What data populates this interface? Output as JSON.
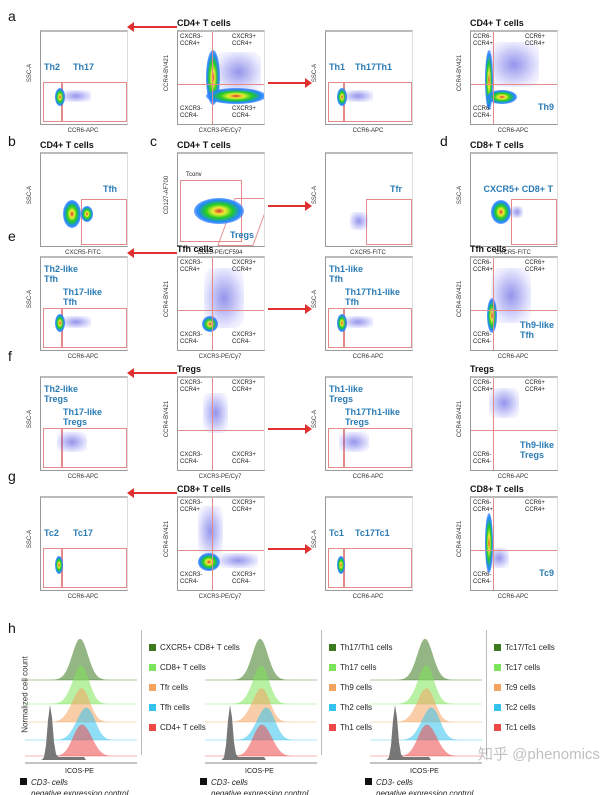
{
  "letters": [
    "a",
    "b",
    "c",
    "d",
    "e",
    "f",
    "g",
    "h"
  ],
  "panels": [
    {
      "id": "a1",
      "title": "",
      "xlabel": "CCR6-APC",
      "ylabel": "SSC-A",
      "gates": [
        "Th2",
        "Th17"
      ]
    },
    {
      "id": "a2",
      "title": "CD4+ T cells",
      "xlabel": "CXCR3-PE/Cy7",
      "ylabel": "CCR4-BV421",
      "quad": [
        "CXCR3-\nCCR4+",
        "CXCR3+\nCCR4+",
        "CXCR3-\nCCR4-",
        "CXCR3+\nCCR4-"
      ]
    },
    {
      "id": "a3",
      "title": "",
      "xlabel": "CCR6-APC",
      "ylabel": "SSC-A",
      "gates": [
        "Th1",
        "Th17Th1"
      ]
    },
    {
      "id": "a4",
      "title": "CD4+ T cells",
      "xlabel": "CCR6-APC",
      "ylabel": "CCR4-BV421",
      "quad": [
        "CCR6-\nCCR4+",
        "CCR6+\nCCR4+",
        "CCR6-\nCCR4-",
        ""
      ],
      "gates": [
        "Th9"
      ]
    },
    {
      "id": "b1",
      "title": "CD4+ T cells",
      "xlabel": "CXCR5-FITC",
      "ylabel": "SSC-A",
      "gates": [
        "Tfh"
      ]
    },
    {
      "id": "c1",
      "title": "CD4+ T cells",
      "xlabel": "CD25-PE/CF594",
      "ylabel": "CD127-AF700",
      "gates": [
        "Tconv",
        "Tregs"
      ]
    },
    {
      "id": "c2",
      "title": "",
      "xlabel": "CXCR5-FITC",
      "ylabel": "SSC-A",
      "gates": [
        "Tfr"
      ]
    },
    {
      "id": "d1",
      "title": "CD8+ T cells",
      "xlabel": "CXCR5-FITC",
      "ylabel": "SSC-A",
      "gates": [
        "CXCR5+ CD8+ T"
      ]
    },
    {
      "id": "e1",
      "title": "",
      "xlabel": "CCR6-APC",
      "ylabel": "SSC-A",
      "gates": [
        "Th2-like\nTfh",
        "Th17-like\nTfh"
      ]
    },
    {
      "id": "e2",
      "title": "Tfh cells",
      "xlabel": "CXCR3-PE/Cy7",
      "ylabel": "CCR4-BV421",
      "quad": [
        "CXCR3-\nCCR4+",
        "CXCR3+\nCCR4+",
        "CXCR3-\nCCR4-",
        "CXCR3+\nCCR4-"
      ]
    },
    {
      "id": "e3",
      "title": "",
      "xlabel": "CCR6-APC",
      "ylabel": "SSC-A",
      "gates": [
        "Th1-like\nTfh",
        "Th17Th1-like\nTfh"
      ]
    },
    {
      "id": "e4",
      "title": "Tfh cells",
      "xlabel": "CCR6-APC",
      "ylabel": "CCR4-BV421",
      "quad": [
        "CCR6-\nCCR4+",
        "CCR6+\nCCR4+",
        "CCR6-\nCCR4-",
        ""
      ],
      "gates": [
        "Th9-like\nTfh"
      ]
    },
    {
      "id": "f1",
      "title": "",
      "xlabel": "CCR6-APC",
      "ylabel": "SSC-A",
      "gates": [
        "Th2-like\nTregs",
        "Th17-like\nTregs"
      ]
    },
    {
      "id": "f2",
      "title": "Tregs",
      "xlabel": "CXCR3-PE/Cy7",
      "ylabel": "CCR4-BV421",
      "quad": [
        "CXCR3-\nCCR4+",
        "CXCR3+\nCCR4+",
        "CXCR3-\nCCR4-",
        "CXCR3+\nCCR4-"
      ]
    },
    {
      "id": "f3",
      "title": "",
      "xlabel": "CCR6-APC",
      "ylabel": "SSC-A",
      "gates": [
        "Th1-like\nTregs",
        "Th17Th1-like\nTregs"
      ]
    },
    {
      "id": "f4",
      "title": "Tregs",
      "xlabel": "CCR6-APC",
      "ylabel": "CCR4-BV421",
      "quad": [
        "CCR6-\nCCR4+",
        "CCR6+\nCCR4+",
        "CCR6-\nCCR4-",
        ""
      ],
      "gates": [
        "Th9-like\nTregs"
      ]
    },
    {
      "id": "g1",
      "title": "",
      "xlabel": "CCR6-APC",
      "ylabel": "SSC-A",
      "gates": [
        "Tc2",
        "Tc17"
      ]
    },
    {
      "id": "g2",
      "title": "CD8+ T cells",
      "xlabel": "CXCR3-PE/Cy7",
      "ylabel": "CCR4-BV421",
      "quad": [
        "CXCR3-\nCCR4+",
        "CXCR3+\nCCR4+",
        "CXCR3-\nCCR4-",
        "CXCR3+\nCCR4-"
      ]
    },
    {
      "id": "g3",
      "title": "",
      "xlabel": "CCR6-APC",
      "ylabel": "SSC-A",
      "gates": [
        "Tc1",
        "Tc17Tc1"
      ]
    },
    {
      "id": "g4",
      "title": "CD8+ T cells",
      "xlabel": "CCR6-APC",
      "ylabel": "CCR4-BV421",
      "quad": [
        "CCR6-\nCCR4+",
        "CCR6+\nCCR4+",
        "CCR6-\nCCR4-",
        ""
      ],
      "gates": [
        "Tc9"
      ]
    }
  ],
  "histograms": {
    "ylabel": "Normalized cell count",
    "groups": [
      {
        "xlabel": "ICOS-PE",
        "legend": [
          "CXCR5+ CD8+ T cells",
          "CD8+ T cells",
          "Tfr cells",
          "Tfh cells",
          "CD4+ T cells"
        ]
      },
      {
        "xlabel": "ICOS-PE",
        "legend": [
          "Th17/Th1 cells",
          "Th17 cells",
          "Th9 cells",
          "Th2 cells",
          "Th1 cells"
        ]
      },
      {
        "xlabel": "ICOS-PE",
        "legend": [
          "Tc17/Tc1 cells",
          "Tc17 cells",
          "Tc9 cells",
          "Tc2 cells",
          "Tc1 cells"
        ]
      }
    ],
    "colors": [
      "#3d7a1f",
      "#7de35a",
      "#f4a460",
      "#35c3ee",
      "#ee4848"
    ],
    "control_color": "#777777",
    "control_label": "CD3-  cells",
    "control_note": "negative expression control"
  },
  "watermark": "知乎 @phenomics"
}
